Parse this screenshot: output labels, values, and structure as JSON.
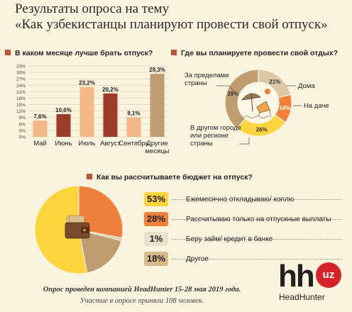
{
  "title": {
    "line1": "Результаты опроса на тему",
    "line2": "«Как узбекистанцы планируют провести свой отпуск»"
  },
  "colors": {
    "bg": "#faf3dd",
    "dark_red": "#9c3d2a",
    "light_orange": "#f6b788",
    "brown_red": "#a7463a",
    "tan": "#bf9d70",
    "yellow": "#fcd53c",
    "orange": "#f07f3c",
    "light_tan": "#dbc7a6",
    "bullet": "#c0533b"
  },
  "chart_data": [
    {
      "type": "bar",
      "title": "В каком месяце лучше брать отпуск?",
      "categories": [
        "Май",
        "Июнь",
        "Июль",
        "Август",
        "Сентябрь",
        "Другие месяцы"
      ],
      "values": [
        7.6,
        10.6,
        23.2,
        20.2,
        9.1,
        29.3
      ],
      "value_labels": [
        "7,6%",
        "10,6%",
        "23,2%",
        "20,2%",
        "9,1%",
        "29,3%"
      ],
      "bar_colors": [
        "#f6b788",
        "#9c3d2a",
        "#f6b788",
        "#9c3d2a",
        "#f6b788",
        "#bf9d70"
      ],
      "yticks": [
        "0%",
        "3%",
        "6%",
        "9%",
        "12%",
        "15%",
        "18%",
        "21%",
        "24%",
        "27%",
        "30%",
        "33%"
      ],
      "ylim": [
        0,
        33
      ],
      "grid": true
    },
    {
      "type": "pie",
      "subtype": "donut",
      "title": "Где вы планируете провести свой отдых?",
      "categories": [
        "Дома",
        "На даче",
        "В другом городе или регионе страны",
        "За пределами страны"
      ],
      "values": [
        21,
        14,
        26,
        39
      ],
      "value_labels": [
        "21%",
        "14%",
        "26%",
        "39%"
      ],
      "colors": [
        "#dbc7a6",
        "#f07f3c",
        "#fcd53c",
        "#bf9d70"
      ]
    },
    {
      "type": "pie",
      "title": "Как вы рассчитываете бюджет на отпуск?",
      "categories": [
        "Ежемесячно откладываю/ коплю",
        "Рассчитываю только на отпускные выплаты",
        "Беру займ/ кредит в банке",
        "Другое"
      ],
      "values": [
        53,
        28,
        1,
        18
      ],
      "value_labels": [
        "53%",
        "28%",
        "1%",
        "18%"
      ],
      "colors": [
        "#fcd53c",
        "#f07f3c",
        "#dbc7a6",
        "#bf9d70"
      ]
    }
  ],
  "donut_labels": {
    "abroad": "За пределами страны",
    "home": "Дома",
    "dacha": "На даче",
    "other_city": "В другом городе или регионе страны"
  },
  "footer": {
    "line1": "Опрос проведен компанией HeadHunter 15-28 мая 2019 года.",
    "line2": "Участие в опросе приняли 108 человек."
  },
  "logo": {
    "mark": "hh",
    "badge": "uz",
    "name": "HeadHunter"
  }
}
